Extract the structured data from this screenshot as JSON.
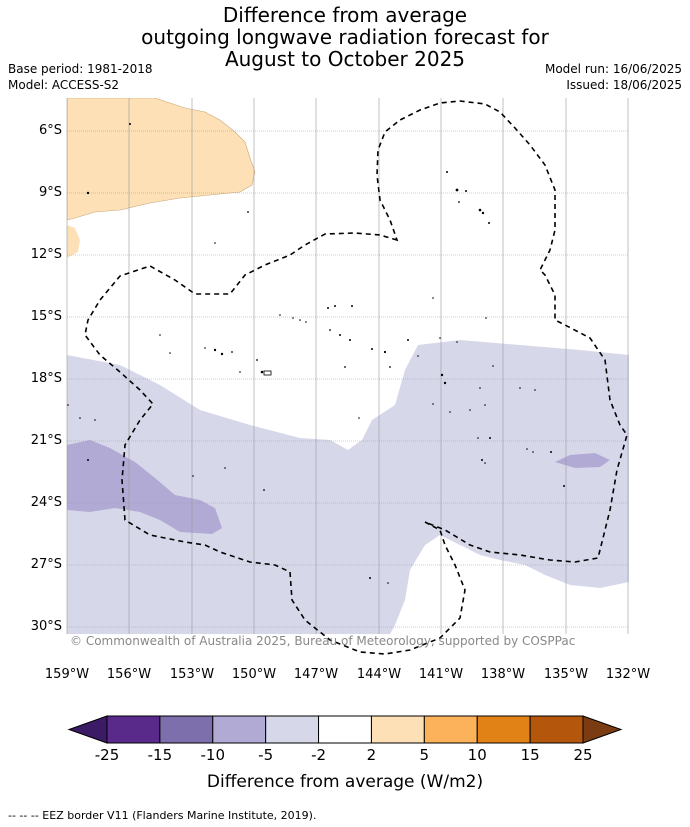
{
  "title_lines": [
    "Difference from average",
    "outgoing longwave radiation forecast for",
    "August to October 2025"
  ],
  "meta": {
    "base_period": "Base period: 1981-2018",
    "model": "Model: ACCESS-S2",
    "model_run": "Model run: 16/06/2025",
    "issued": "Issued: 18/06/2025"
  },
  "copyright": "© Commonwealth of Australia 2025, Bureau of Meteorology, supported by COSPPac",
  "map": {
    "lat_labels": [
      "6°S",
      "9°S",
      "12°S",
      "15°S",
      "18°S",
      "21°S",
      "24°S",
      "27°S",
      "30°S"
    ],
    "lon_labels": [
      "159°W",
      "156°W",
      "153°W",
      "150°W",
      "147°W",
      "144°W",
      "141°W",
      "138°W",
      "135°W",
      "132°W"
    ]
  },
  "colorbar": {
    "ticks": [
      "-25",
      "-15",
      "-10",
      "-5",
      "-2",
      "2",
      "5",
      "10",
      "15",
      "25"
    ],
    "colors": [
      "#3b1a66",
      "#5a2a8a",
      "#7c6fac",
      "#b1aad4",
      "#d7d7ea",
      "#ffffff",
      "#fde0b5",
      "#fbb25a",
      "#e08216",
      "#b4560c",
      "#7a3c10"
    ],
    "label": "Difference from average (W/m2)"
  },
  "footnote": "--  --  -- EEZ border V11 (Flanders Marine Institute, 2019)."
}
